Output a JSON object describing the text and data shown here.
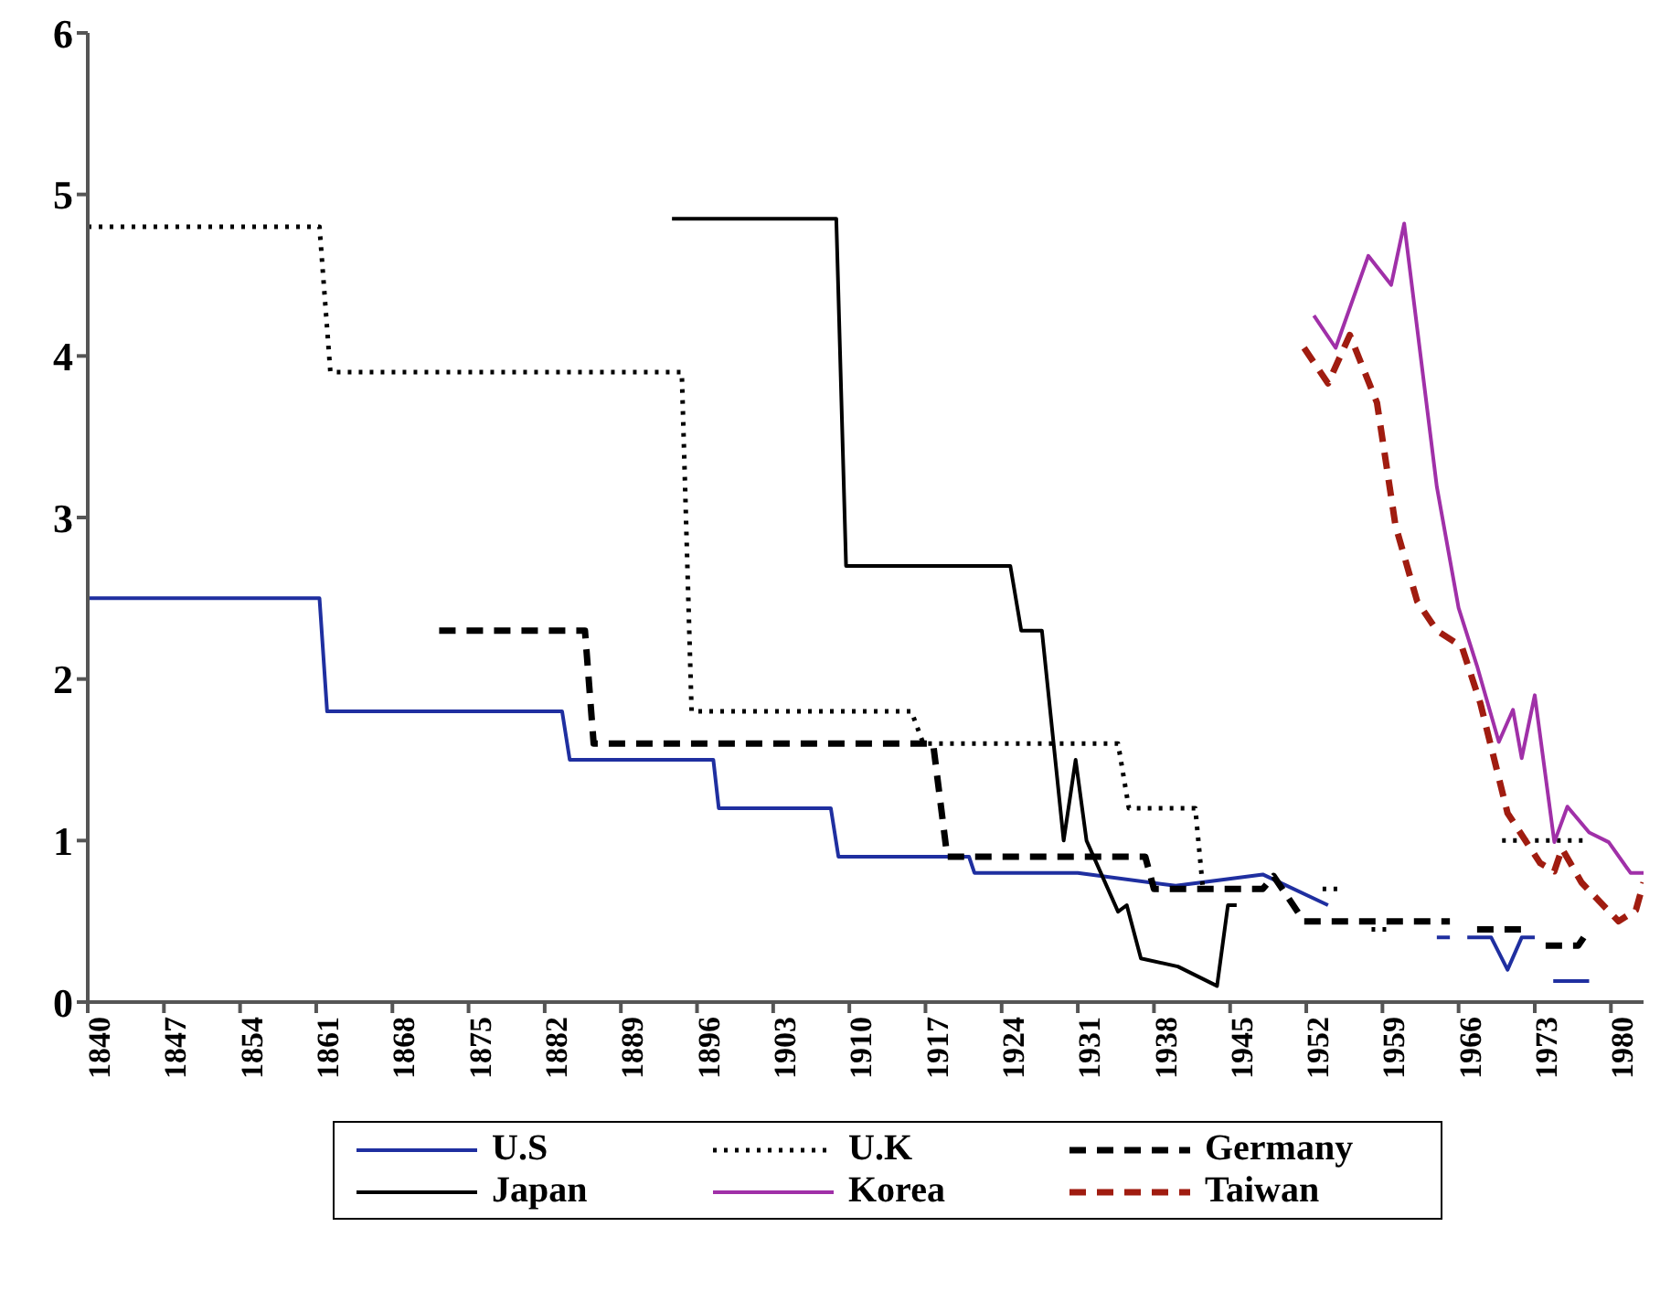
{
  "chart_data": {
    "type": "line",
    "xlim": [
      1840,
      1983
    ],
    "xticks": [
      1840,
      1847,
      1854,
      1861,
      1868,
      1875,
      1882,
      1889,
      1896,
      1903,
      1910,
      1917,
      1924,
      1931,
      1938,
      1945,
      1952,
      1959,
      1966,
      1973,
      1980
    ],
    "ylim": [
      0,
      6
    ],
    "yticks": [
      0,
      1,
      2,
      3,
      4,
      5,
      6
    ],
    "legend": "bottom",
    "marker": "none",
    "series": [
      {
        "name": "U.S",
        "color": "#1f2fa0",
        "line_style": "solid",
        "x": [
          1840,
          1861.3,
          1862,
          1883.6,
          1884.3,
          1897.5,
          1898,
          1908.3,
          1909,
          1921,
          1921.5,
          1931,
          1940,
          1948,
          1954,
          1959,
          1964,
          1965.2,
          1966,
          1966.8,
          1969,
          1970.5,
          1971.8,
          1973,
          1974,
          1974.7,
          1978
        ],
        "values": [
          2.5,
          2.5,
          1.8,
          1.8,
          1.5,
          1.5,
          1.2,
          1.2,
          0.9,
          0.9,
          0.8,
          0.8,
          0.72,
          0.79,
          0.6,
          null,
          0.4,
          0.4,
          null,
          0.4,
          0.4,
          0.2,
          0.4,
          0.4,
          null,
          0.13,
          0.13
        ]
      },
      {
        "name": "U.K",
        "color": "#000000",
        "line_style": "dotted",
        "x": [
          1840,
          1861.3,
          1862.3,
          1894.6,
          1895.5,
          1915.7,
          1916.8,
          1934.7,
          1935.7,
          1941.8,
          1942.5,
          1948,
          1953.5,
          1955,
          1957,
          1958,
          1960,
          1965,
          1970,
          1978
        ],
        "values": [
          4.8,
          4.8,
          3.9,
          3.9,
          1.8,
          1.8,
          1.6,
          1.6,
          1.2,
          1.2,
          0.7,
          null,
          0.7,
          0.7,
          null,
          0.45,
          0.45,
          null,
          1.0,
          1.0
        ]
      },
      {
        "name": "Germany",
        "color": "#000000",
        "line_style": "dashed",
        "x": [
          1872.3,
          1885.7,
          1886.5,
          1917.7,
          1919,
          1937.2,
          1938,
          1948,
          1949,
          1951.8,
          1953.8,
          1965.2,
          1966.5,
          1967.7,
          1971.8,
          1973,
          1974,
          1977,
          1977.5
        ],
        "values": [
          2.3,
          2.3,
          1.6,
          1.6,
          0.9,
          0.9,
          0.7,
          0.7,
          0.78,
          0.5,
          0.5,
          0.5,
          null,
          0.45,
          0.45,
          null,
          0.35,
          0.35,
          0.4
        ]
      },
      {
        "name": "Japan",
        "color": "#000000",
        "line_style": "solid",
        "x": [
          1893.7,
          1908.8,
          1909.7,
          1924.8,
          1925.8,
          1927.7,
          1929.7,
          1930.8,
          1931.8,
          1934.7,
          1935.5,
          1936.8,
          1940.2,
          1943.8,
          1944.8,
          1945.6
        ],
        "values": [
          4.85,
          4.85,
          2.7,
          2.7,
          2.3,
          2.3,
          1.0,
          1.5,
          1.0,
          0.56,
          0.6,
          0.27,
          0.22,
          0.1,
          0.6,
          0.6
        ]
      },
      {
        "name": "Korea",
        "color": "#a030a8",
        "line_style": "solid",
        "x": [
          1952.7,
          1954.7,
          1957.7,
          1959.8,
          1961,
          1964,
          1966,
          1967.7,
          1969.7,
          1971,
          1971.8,
          1973,
          1974.8,
          1976,
          1978,
          1979.8,
          1981.8,
          1983
        ],
        "values": [
          4.25,
          4.05,
          4.62,
          4.44,
          4.82,
          3.19,
          2.44,
          2.08,
          1.61,
          1.81,
          1.51,
          1.9,
          0.99,
          1.21,
          1.05,
          0.99,
          0.8,
          0.8
        ]
      },
      {
        "name": "Taiwan",
        "color": "#a01c10",
        "line_style": "dashed",
        "x": [
          1951.8,
          1954,
          1956,
          1958.5,
          1960.2,
          1962.2,
          1964,
          1966.3,
          1968,
          1970.5,
          1973.5,
          1974.8,
          1975.5,
          1977.3,
          1980.7,
          1982.3,
          1983
        ],
        "values": [
          4.05,
          3.83,
          4.13,
          3.71,
          2.95,
          2.48,
          2.3,
          2.2,
          1.85,
          1.17,
          0.86,
          0.81,
          0.95,
          0.74,
          0.5,
          0.57,
          0.74
        ]
      }
    ]
  }
}
